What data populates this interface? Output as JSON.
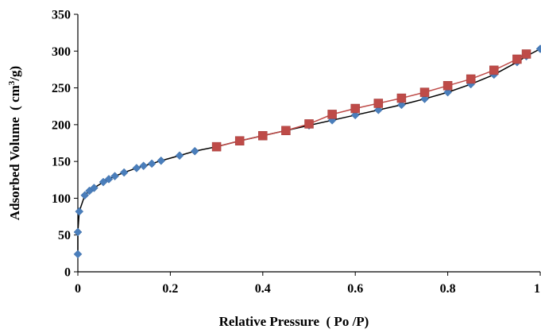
{
  "chart_data": {
    "type": "scatter",
    "xlabel": "Relative Pressure  ( Po /P)",
    "ylabel": {
      "prefix": "Adsorbed Volume  ( cm",
      "sup": "3",
      "suffix": "/g)"
    },
    "xlim": [
      0,
      1.0
    ],
    "ylim": [
      0,
      350
    ],
    "xticks": [
      "0",
      "0.2",
      "0.4",
      "0.6",
      "0.8",
      "1"
    ],
    "yticks": [
      "0",
      "50",
      "100",
      "150",
      "200",
      "250",
      "300",
      "350"
    ],
    "grid": false,
    "legend": "none",
    "series": [
      {
        "marker": "diamond",
        "color": "#4a7ebb",
        "line_color": "#000000",
        "x": [
          0.0,
          0.0,
          0.003,
          0.015,
          0.025,
          0.035,
          0.055,
          0.067,
          0.08,
          0.1,
          0.127,
          0.142,
          0.16,
          0.18,
          0.22,
          0.253,
          0.3,
          0.35,
          0.4,
          0.45,
          0.5,
          0.55,
          0.6,
          0.65,
          0.7,
          0.75,
          0.8,
          0.85,
          0.9,
          0.95,
          0.97,
          1.0
        ],
        "y": [
          24,
          54,
          82,
          104,
          110,
          114,
          122,
          126,
          130,
          135,
          141,
          144,
          147,
          151,
          158,
          164,
          170,
          178,
          185,
          192,
          199,
          206,
          213,
          220,
          227,
          235,
          244,
          255,
          268,
          285,
          293,
          303
        ]
      },
      {
        "marker": "square",
        "color": "#be4b48",
        "line_color": "#be4b48",
        "x": [
          0.3,
          0.35,
          0.4,
          0.45,
          0.5,
          0.55,
          0.6,
          0.65,
          0.7,
          0.75,
          0.8,
          0.85,
          0.9,
          0.95,
          0.97
        ],
        "y": [
          170,
          178,
          185,
          192,
          201,
          214,
          222,
          229,
          236,
          244,
          253,
          262,
          274,
          289,
          296
        ]
      }
    ]
  }
}
